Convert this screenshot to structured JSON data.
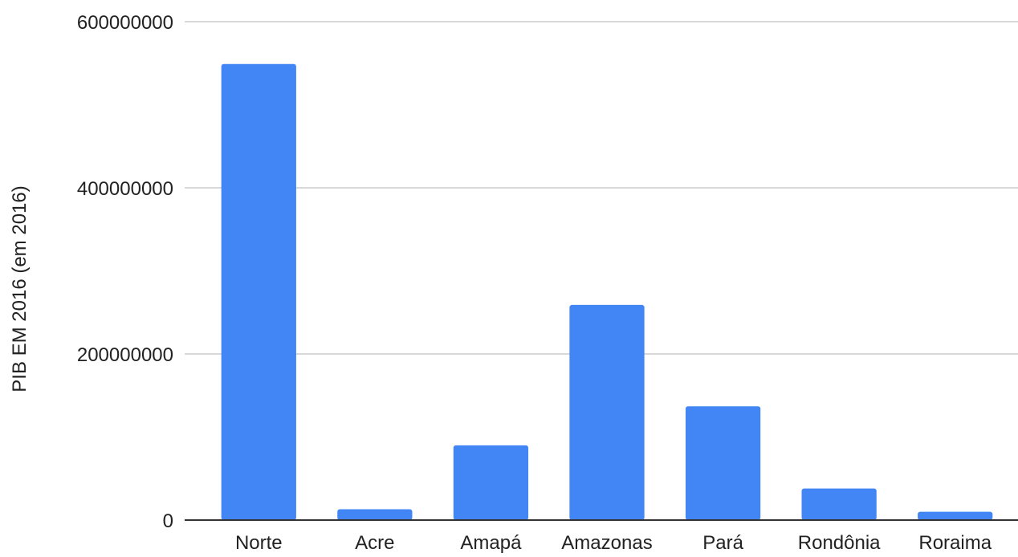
{
  "chart_data": {
    "type": "bar",
    "title": "",
    "xlabel": "",
    "ylabel": "PIB EM 2016 (em 2016)",
    "categories": [
      "Norte",
      "Acre",
      "Amapá",
      "Amazonas",
      "Pará",
      "Rondônia",
      "Roraima"
    ],
    "series": [
      {
        "values": [
          549000000,
          13000000,
          90000000,
          259000000,
          137000000,
          38000000,
          10000000
        ]
      }
    ],
    "ylim": [
      0,
      600000000
    ],
    "yticks": [
      "0",
      "200000000",
      "400000000",
      "600000000"
    ],
    "grid": true,
    "legend": "none",
    "colors": {
      "bar": "#4285f4",
      "grid": "#cccccc",
      "axis": "#333333"
    }
  }
}
